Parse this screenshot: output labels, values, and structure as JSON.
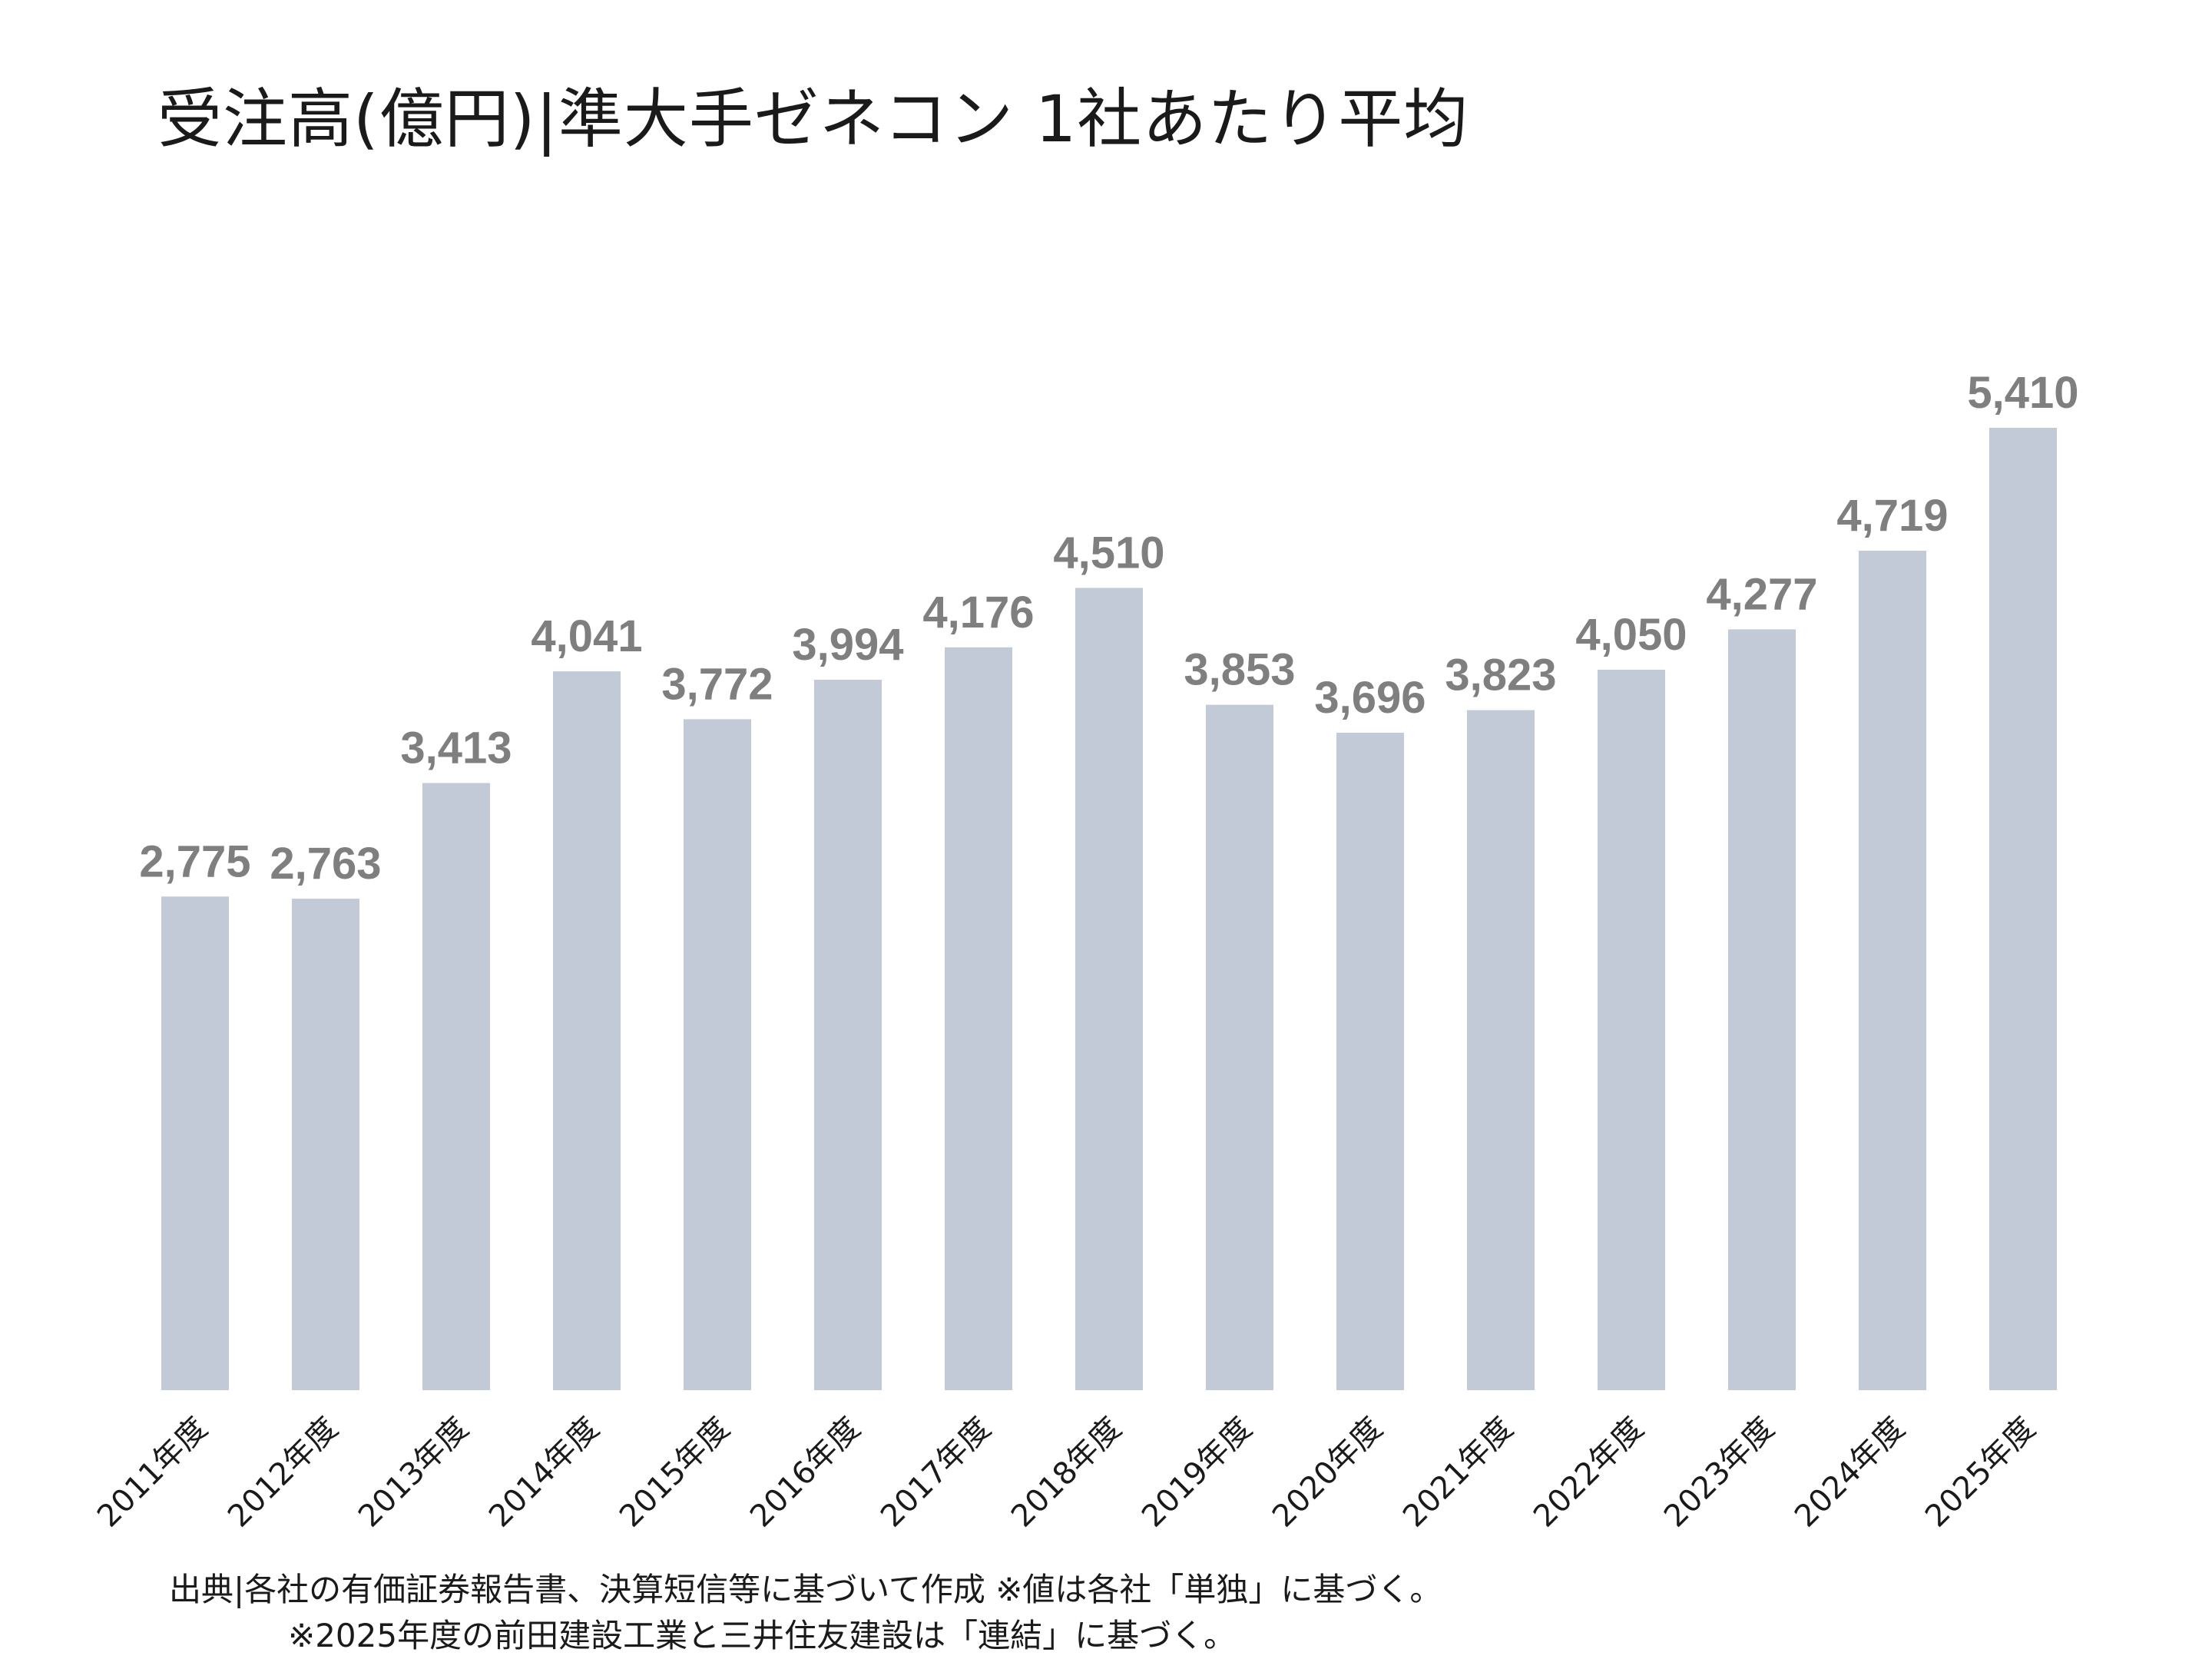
{
  "chart_data": {
    "type": "bar",
    "title": "受注高(億円)|準大手ゼネコン 1社あたり平均",
    "categories": [
      "2011年度",
      "2012年度",
      "2013年度",
      "2014年度",
      "2015年度",
      "2016年度",
      "2017年度",
      "2018年度",
      "2019年度",
      "2020年度",
      "2021年度",
      "2022年度",
      "2023年度",
      "2024年度",
      "2025年度"
    ],
    "values": [
      2775,
      2763,
      3413,
      4041,
      3772,
      3994,
      4176,
      4510,
      3853,
      3696,
      3823,
      4050,
      4277,
      4719,
      5410
    ],
    "value_labels": [
      "2,775",
      "2,763",
      "3,413",
      "4,041",
      "3,772",
      "3,994",
      "4,176",
      "4,510",
      "3,853",
      "3,696",
      "3,823",
      "4,050",
      "4,277",
      "4,719",
      "5,410"
    ],
    "xlabel": "",
    "ylabel": "",
    "ylim": [
      0,
      5410
    ],
    "grid": false,
    "legend": "none",
    "bar_color": "#c1cad6",
    "label_color": "#7f7f7f"
  },
  "notes": {
    "line1": "出典|各社の有価証券報告書、決算短信等に基づいて作成  ※値は各社「単独」に基づく。",
    "line2": "※2025年度の前田建設工業と三井住友建設は「連結」に基づく。"
  }
}
